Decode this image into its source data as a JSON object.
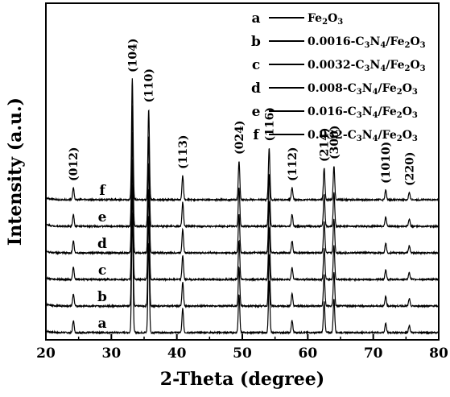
{
  "chart_data": {
    "type": "line",
    "xlabel": "2-Theta (degree)",
    "ylabel": "Intensity (a.u.)",
    "xlim": [
      20,
      80
    ],
    "x_ticks": [
      "20",
      "30",
      "40",
      "50",
      "60",
      "70",
      "80"
    ],
    "y_ticks_labeled": false,
    "grid": false,
    "legend_position": "top-right",
    "legend": [
      {
        "letter": "a",
        "name_parts": [
          "Fe",
          "2",
          "O",
          "3"
        ]
      },
      {
        "letter": "b",
        "name_parts": [
          "0.0016-C",
          "3",
          "N",
          "4",
          "/Fe",
          "2",
          "O",
          "3"
        ]
      },
      {
        "letter": "c",
        "name_parts": [
          "0.0032-C",
          "3",
          "N",
          "4",
          "/Fe",
          "2",
          "O",
          "3"
        ]
      },
      {
        "letter": "d",
        "name_parts": [
          "0.008-C",
          "3",
          "N",
          "4",
          "/Fe",
          "2",
          "O",
          "3"
        ]
      },
      {
        "letter": "e",
        "name_parts": [
          "0.016-C",
          "3",
          "N",
          "4",
          "/Fe",
          "2",
          "O",
          "3"
        ]
      },
      {
        "letter": "f",
        "name_parts": [
          "0.032-C",
          "3",
          "N",
          "4",
          "/Fe",
          "2",
          "O",
          "3"
        ]
      }
    ],
    "peak_labels": [
      {
        "label": "(012)",
        "x": 24.2
      },
      {
        "label": "(104)",
        "x": 33.2
      },
      {
        "label": "(110)",
        "x": 35.7
      },
      {
        "label": "(113)",
        "x": 40.9
      },
      {
        "label": "(024)",
        "x": 49.5
      },
      {
        "label": "(116)",
        "x": 54.1
      },
      {
        "label": "(112)",
        "x": 57.6
      },
      {
        "label": "(214)",
        "x": 62.5
      },
      {
        "label": "(300)",
        "x": 64.0
      },
      {
        "label": "(1010)",
        "x": 71.9
      },
      {
        "label": "(220)",
        "x": 75.5
      }
    ],
    "peaks": [
      {
        "x": 24.2,
        "h": 0.1
      },
      {
        "x": 33.2,
        "h": 1.0
      },
      {
        "x": 35.7,
        "h": 0.75
      },
      {
        "x": 40.9,
        "h": 0.2
      },
      {
        "x": 49.5,
        "h": 0.32
      },
      {
        "x": 54.1,
        "h": 0.43
      },
      {
        "x": 57.6,
        "h": 0.1
      },
      {
        "x": 62.5,
        "h": 0.26
      },
      {
        "x": 64.0,
        "h": 0.28
      },
      {
        "x": 71.9,
        "h": 0.08
      },
      {
        "x": 75.5,
        "h": 0.06
      }
    ],
    "series": [
      {
        "label": "a",
        "offset": 0.0
      },
      {
        "label": "b",
        "offset": 0.22
      },
      {
        "label": "c",
        "offset": 0.44
      },
      {
        "label": "d",
        "offset": 0.66
      },
      {
        "label": "e",
        "offset": 0.88
      },
      {
        "label": "f",
        "offset": 1.1
      }
    ]
  }
}
